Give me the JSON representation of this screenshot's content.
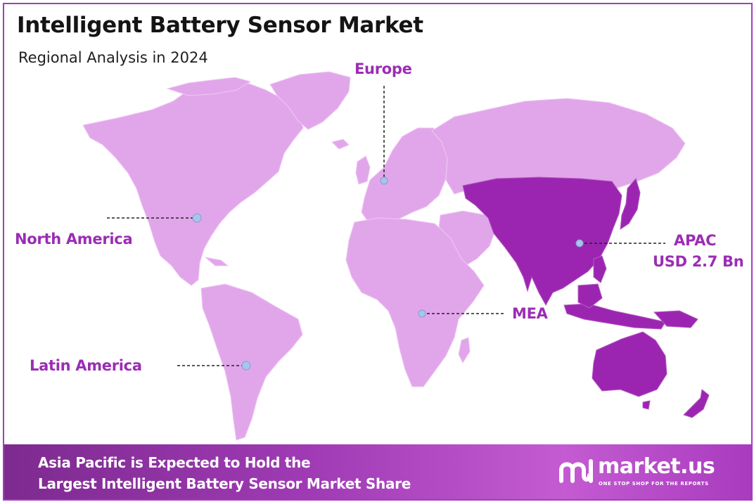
{
  "title": "Intelligent Battery Sensor Market",
  "subtitle": "Regional Analysis in 2024",
  "regions": {
    "europe": "Europe",
    "north_america": "North America",
    "apac": "APAC",
    "apac_value": "USD 2.7 Bn",
    "mea": "MEA",
    "latin_america": "Latin America"
  },
  "banner": {
    "line1": "Asia Pacific is Expected to Hold the",
    "line2": "Largest Intelligent Battery Sensor Market Share"
  },
  "brand": {
    "name": "market.us",
    "tagline": "ONE STOP SHOP FOR THE REPORTS"
  },
  "colors": {
    "land": "#e1a6ea",
    "highlight": "#9b25b0",
    "label": "#9b2db4",
    "marker": "#a9c4ec",
    "banner": "#9f3ab4"
  }
}
